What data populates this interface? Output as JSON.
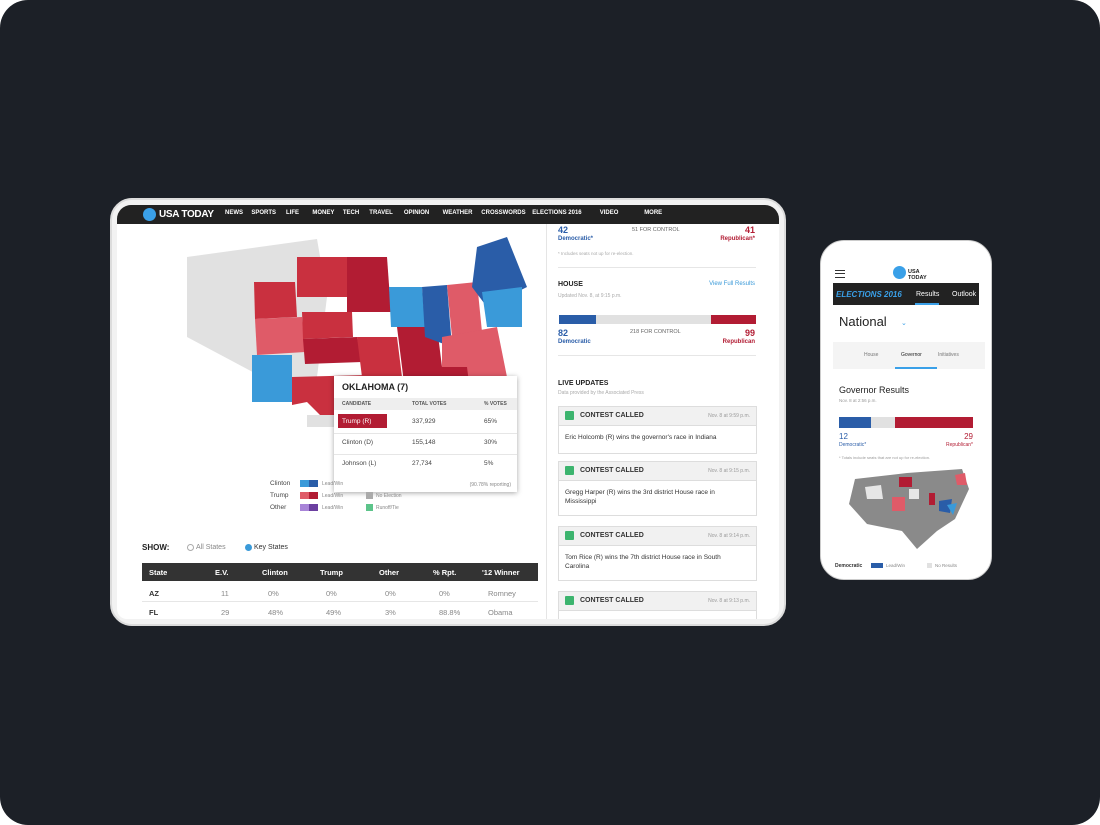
{
  "tablet": {
    "nav": {
      "logo": "USA TODAY",
      "items": [
        "NEWS",
        "SPORTS",
        "LIFE",
        "MONEY",
        "TECH",
        "TRAVEL",
        "OPINION",
        "WEATHER",
        "CROSSWORDS",
        "ELECTIONS 2016",
        "VIDEO",
        "MORE"
      ]
    },
    "tooltip": {
      "title": "OKLAHOMA (7)",
      "headers": [
        "CANDIDATE",
        "TOTAL VOTES",
        "% VOTES"
      ],
      "rows": [
        [
          "Trump (R)",
          "337,929",
          "65%"
        ],
        [
          "Clinton (D)",
          "155,148",
          "30%"
        ],
        [
          "Johnson (L)",
          "27,734",
          "5%"
        ]
      ],
      "footer": "(90.78% reporting)"
    },
    "legend": {
      "rows": [
        [
          "Clinton",
          "Lead/Win"
        ],
        [
          "Trump",
          "Lead/Win"
        ],
        [
          "Other",
          "Lead/Win"
        ]
      ],
      "extra": [
        "No Election",
        "Runoff/Tie"
      ]
    },
    "show": {
      "label": "SHOW:",
      "options": [
        "All States",
        "Key States"
      ]
    },
    "table": {
      "headers": [
        "State",
        "E.V.",
        "Clinton",
        "Trump",
        "Other",
        "% Rpt.",
        "'12 Winner"
      ],
      "rows": [
        [
          "AZ",
          "11",
          "0%",
          "0%",
          "0%",
          "0%",
          "Romney"
        ],
        [
          "FL",
          "29",
          "48%",
          "49%",
          "3%",
          "88.8%",
          "Obama"
        ]
      ]
    },
    "senate": {
      "democratic": {
        "value": 42,
        "label": "Democratic*"
      },
      "control": "51 FOR CONTROL",
      "republican": {
        "value": 41,
        "label": "Republican*"
      },
      "note": "* Includes seats not up for re-election."
    },
    "house": {
      "title": "HOUSE",
      "link": "View Full Results",
      "updated": "Updated Nov. 8, at 9:15 p.m.",
      "democratic": {
        "value": 82,
        "label": "Democratic"
      },
      "control": "218 FOR CONTROL",
      "republican": {
        "value": 99,
        "label": "Republican"
      }
    },
    "live_updates": {
      "title": "LIVE UPDATES",
      "source": "Data provided by the Associated Press",
      "cards": [
        {
          "status": "CONTEST CALLED",
          "time": "Nov. 8 at 9:59 p.m.",
          "text": "Eric Holcomb (R) wins the governor's race in Indiana"
        },
        {
          "status": "CONTEST CALLED",
          "time": "Nov. 8 at 9:15 p.m.",
          "text": "Gregg Harper (R) wins the 3rd district House race in Mississippi"
        },
        {
          "status": "CONTEST CALLED",
          "time": "Nov. 8 at 9:14 p.m.",
          "text": "Tom Rice (R) wins the 7th district House race in South Carolina"
        },
        {
          "status": "CONTEST CALLED",
          "time": "Nov. 8 at 9:13 p.m.",
          "text": ""
        }
      ]
    }
  },
  "phone": {
    "logo": "USA TODAY",
    "section": "ELECTIONS 2016",
    "nav": [
      "Results",
      "Outlook"
    ],
    "heading": "National",
    "tabs": [
      "House",
      "Governor",
      "Initiatives"
    ],
    "governor": {
      "title": "Governor Results",
      "updated": "Nov. 8 at 2:56 p.m.",
      "democratic": {
        "value": 12,
        "label": "Democratic*"
      },
      "republican": {
        "value": 29,
        "label": "Republican*"
      },
      "note": "* Totals include seats that are not up for re-election."
    },
    "legend": [
      "Democratic",
      "Lead/Win",
      "No Results"
    ]
  }
}
